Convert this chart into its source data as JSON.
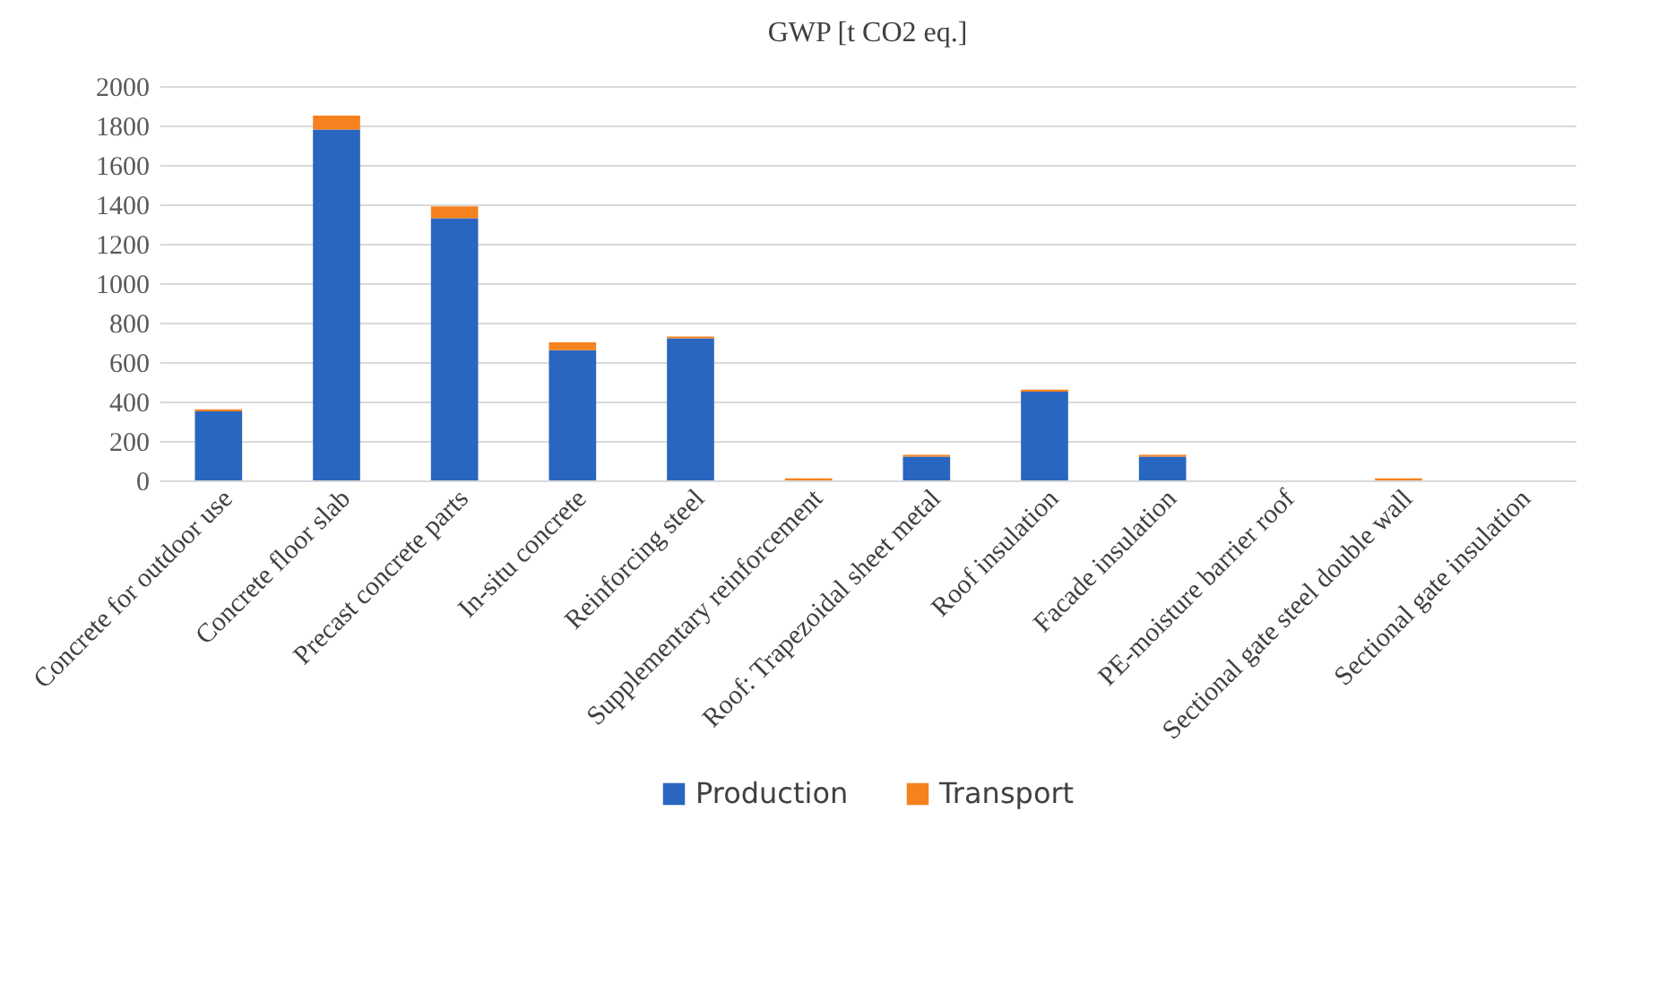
{
  "chart_data": {
    "type": "bar",
    "title": "GWP [t CO2 eq.]",
    "categories": [
      "Concrete for outdoor use",
      "Concrete floor slab",
      "Precast concrete parts",
      "In-situ concrete",
      "Reinforcing steel",
      "Supplementary reinforcement",
      "Roof: Trapezoidal sheet metal",
      "Roof insulation",
      "Facade insulation",
      "PE-moisture barrier roof",
      "Sectional gate steel double wall",
      "Sectional gate insulation"
    ],
    "series": [
      {
        "name": "Production",
        "color": "#2966c0",
        "values": [
          350,
          1780,
          1330,
          660,
          720,
          0,
          120,
          450,
          120,
          0,
          0,
          0
        ]
      },
      {
        "name": "Transport",
        "color": "#f5821f",
        "values": [
          10,
          70,
          60,
          40,
          10,
          10,
          10,
          10,
          10,
          0,
          10,
          0
        ]
      }
    ],
    "stacked": true,
    "ylim": [
      0,
      2000
    ],
    "yticks": [
      0,
      200,
      400,
      600,
      800,
      1000,
      1200,
      1400,
      1600,
      1800,
      2000
    ],
    "grid": "y",
    "legend": "bottom"
  }
}
